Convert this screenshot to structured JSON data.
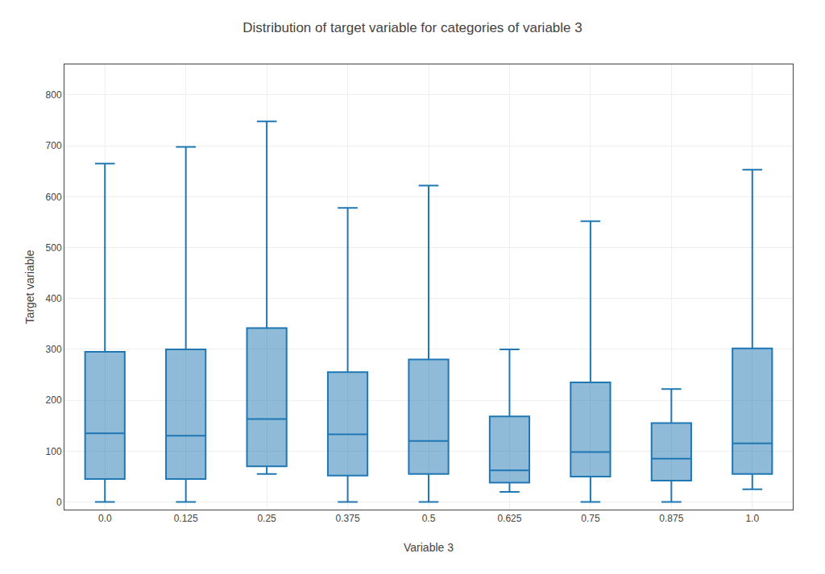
{
  "chart_data": {
    "type": "box",
    "title": "Distribution of target variable for categories of variable 3",
    "xlabel": "Variable 3",
    "ylabel": "Target variable",
    "categories": [
      "0.0",
      "0.125",
      "0.25",
      "0.375",
      "0.5",
      "0.625",
      "0.75",
      "0.875",
      "1.0"
    ],
    "boxes": [
      {
        "lower_whisker": 0,
        "q1": 45,
        "median": 135,
        "q3": 295,
        "upper_whisker": 665
      },
      {
        "lower_whisker": 0,
        "q1": 45,
        "median": 130,
        "q3": 300,
        "upper_whisker": 698
      },
      {
        "lower_whisker": 55,
        "q1": 70,
        "median": 163,
        "q3": 342,
        "upper_whisker": 748
      },
      {
        "lower_whisker": 0,
        "q1": 52,
        "median": 133,
        "q3": 255,
        "upper_whisker": 578
      },
      {
        "lower_whisker": 0,
        "q1": 55,
        "median": 120,
        "q3": 280,
        "upper_whisker": 622
      },
      {
        "lower_whisker": 20,
        "q1": 38,
        "median": 62,
        "q3": 168,
        "upper_whisker": 300
      },
      {
        "lower_whisker": 0,
        "q1": 50,
        "median": 98,
        "q3": 235,
        "upper_whisker": 552
      },
      {
        "lower_whisker": 0,
        "q1": 42,
        "median": 85,
        "q3": 155,
        "upper_whisker": 222
      },
      {
        "lower_whisker": 25,
        "q1": 55,
        "median": 115,
        "q3": 302,
        "upper_whisker": 653
      }
    ],
    "ylim": [
      -15,
      860
    ],
    "yticks": [
      0,
      100,
      200,
      300,
      400,
      500,
      600,
      700,
      800
    ],
    "grid": true
  }
}
